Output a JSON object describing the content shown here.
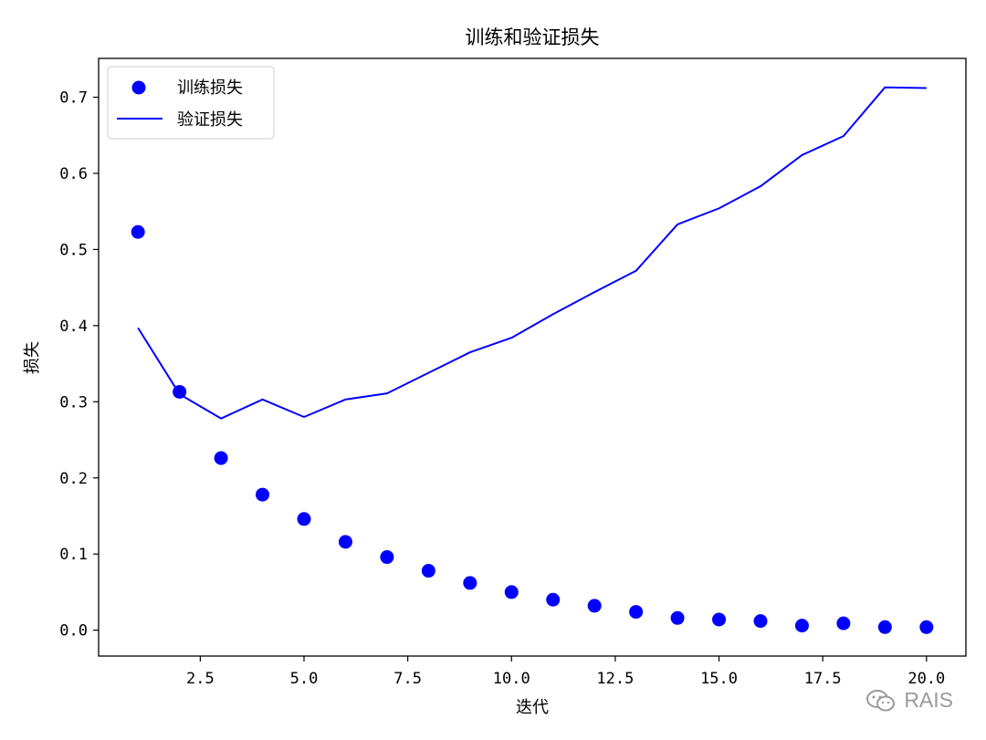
{
  "chart_data": {
    "type": "scatter+line",
    "title": "训练和验证损失",
    "xlabel": "迭代",
    "ylabel": "损失",
    "xlim": [
      0.05,
      20.95
    ],
    "ylim": [
      -0.034,
      0.751
    ],
    "xticks": [
      2.5,
      5.0,
      7.5,
      10.0,
      12.5,
      15.0,
      17.5,
      20.0
    ],
    "xtick_labels": [
      "2.5",
      "5.0",
      "7.5",
      "10.0",
      "12.5",
      "15.0",
      "17.5",
      "20.0"
    ],
    "yticks": [
      0.0,
      0.1,
      0.2,
      0.3,
      0.4,
      0.5,
      0.6,
      0.7
    ],
    "ytick_labels": [
      "0.0",
      "0.1",
      "0.2",
      "0.3",
      "0.4",
      "0.5",
      "0.6",
      "0.7"
    ],
    "legend_position": "top-left",
    "grid": false,
    "series": [
      {
        "name": "训练损失",
        "style": "markers",
        "color": "#0000ff",
        "x": [
          1,
          2,
          3,
          4,
          5,
          6,
          7,
          8,
          9,
          10,
          11,
          12,
          13,
          14,
          15,
          16,
          17,
          18,
          19,
          20
        ],
        "values": [
          0.523,
          0.313,
          0.226,
          0.178,
          0.146,
          0.116,
          0.096,
          0.078,
          0.062,
          0.05,
          0.04,
          0.032,
          0.024,
          0.016,
          0.014,
          0.012,
          0.006,
          0.009,
          0.004,
          0.004
        ]
      },
      {
        "name": "验证损失",
        "style": "line",
        "color": "#0000ff",
        "x": [
          1,
          2,
          3,
          4,
          5,
          6,
          7,
          8,
          9,
          10,
          11,
          12,
          13,
          14,
          15,
          16,
          17,
          18,
          19,
          20
        ],
        "values": [
          0.397,
          0.31,
          0.278,
          0.303,
          0.28,
          0.303,
          0.311,
          0.338,
          0.365,
          0.384,
          0.415,
          0.444,
          0.472,
          0.533,
          0.554,
          0.583,
          0.624,
          0.649,
          0.713,
          0.712
        ]
      }
    ]
  },
  "watermark": {
    "text": "RAIS"
  }
}
